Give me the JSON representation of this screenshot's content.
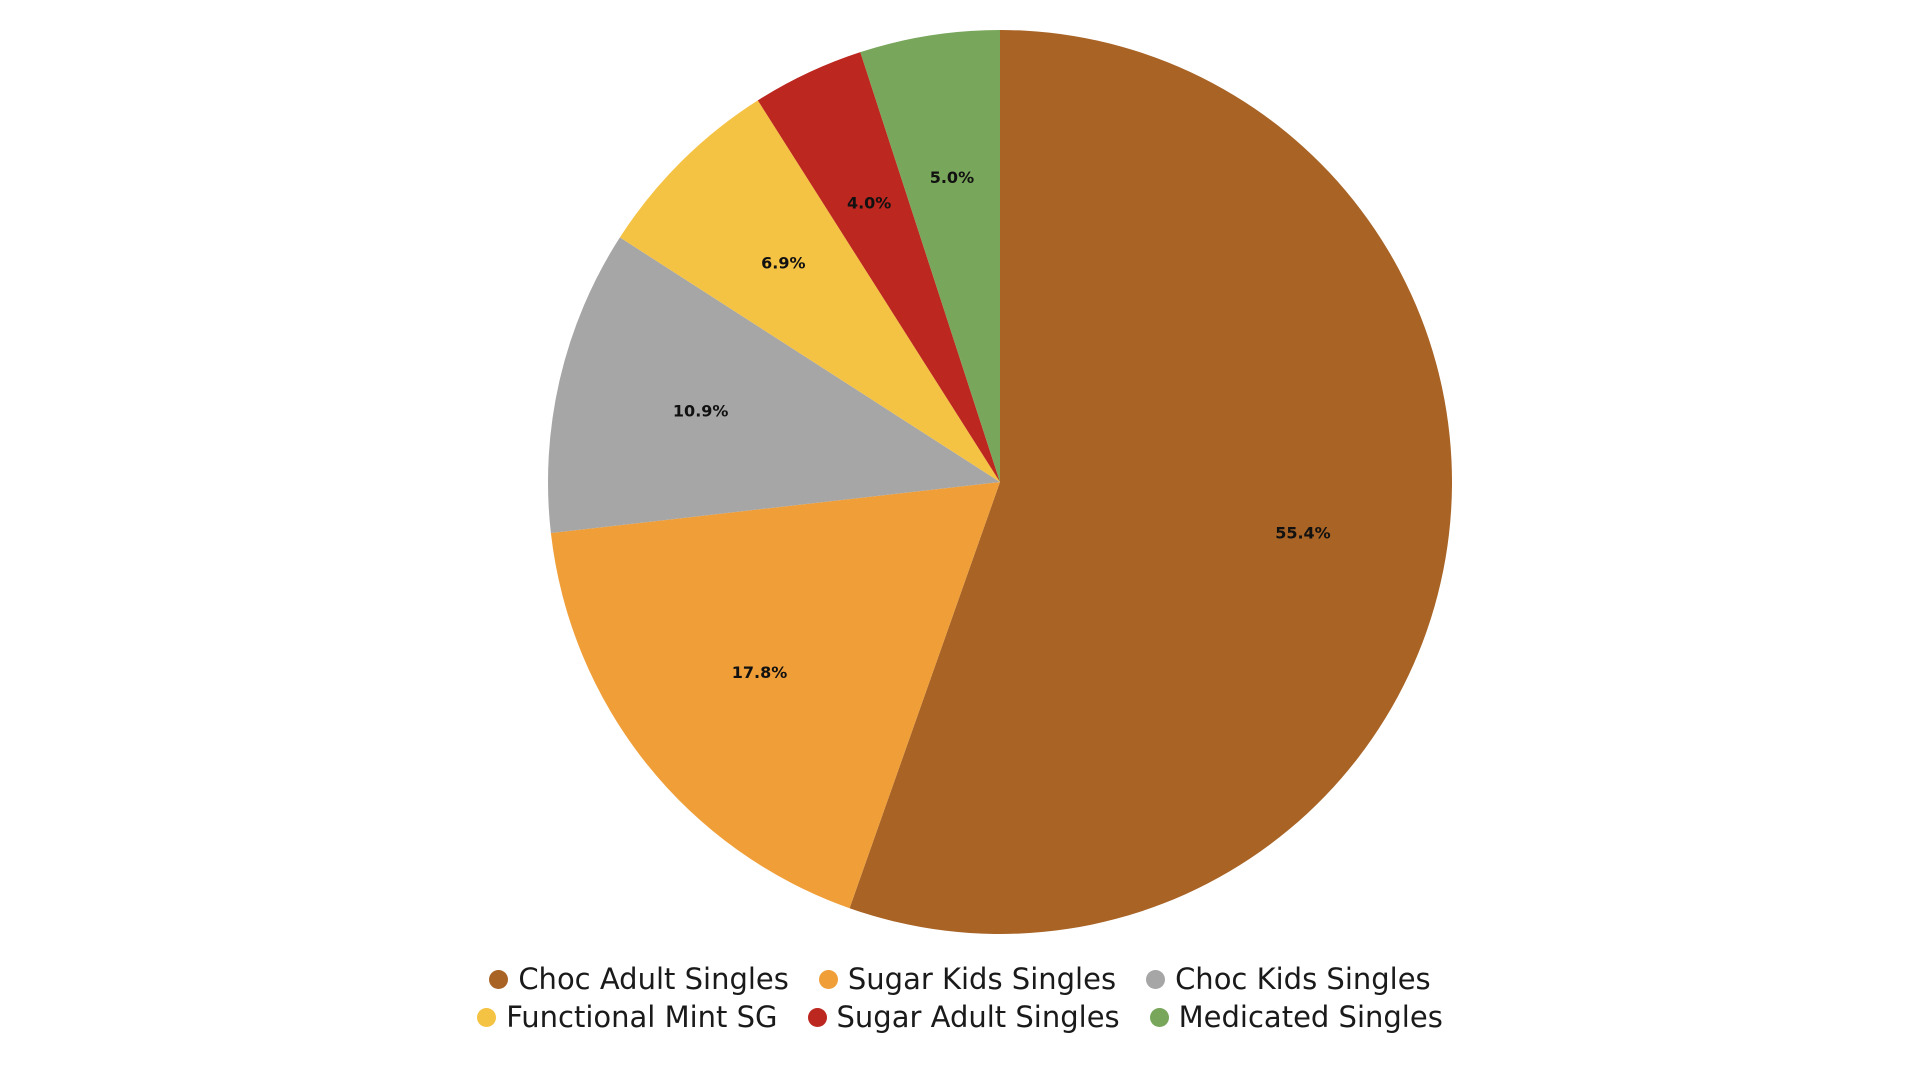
{
  "chart_data": {
    "type": "pie",
    "title": "",
    "start_angle_deg": 0,
    "direction": "clockwise",
    "legend_position": "bottom",
    "slices": [
      {
        "name": "Choc Adult Singles",
        "value": 55.4,
        "label": "55.4%",
        "color": "#A86325"
      },
      {
        "name": "Sugar Kids Singles",
        "value": 17.8,
        "label": "17.8%",
        "color": "#F09E38"
      },
      {
        "name": "Choc Kids Singles",
        "value": 10.9,
        "label": "10.9%",
        "color": "#A6A6A6"
      },
      {
        "name": "Functional Mint SG",
        "value": 6.9,
        "label": "6.9%",
        "color": "#F5C344"
      },
      {
        "name": "Sugar Adult Singles",
        "value": 4.0,
        "label": "4.0%",
        "color": "#BC271F"
      },
      {
        "name": "Medicated Singles",
        "value": 5.0,
        "label": "5.0%",
        "color": "#78A65A"
      }
    ],
    "legend_rows": [
      [
        0,
        1,
        2
      ],
      [
        3,
        4,
        5
      ]
    ]
  }
}
